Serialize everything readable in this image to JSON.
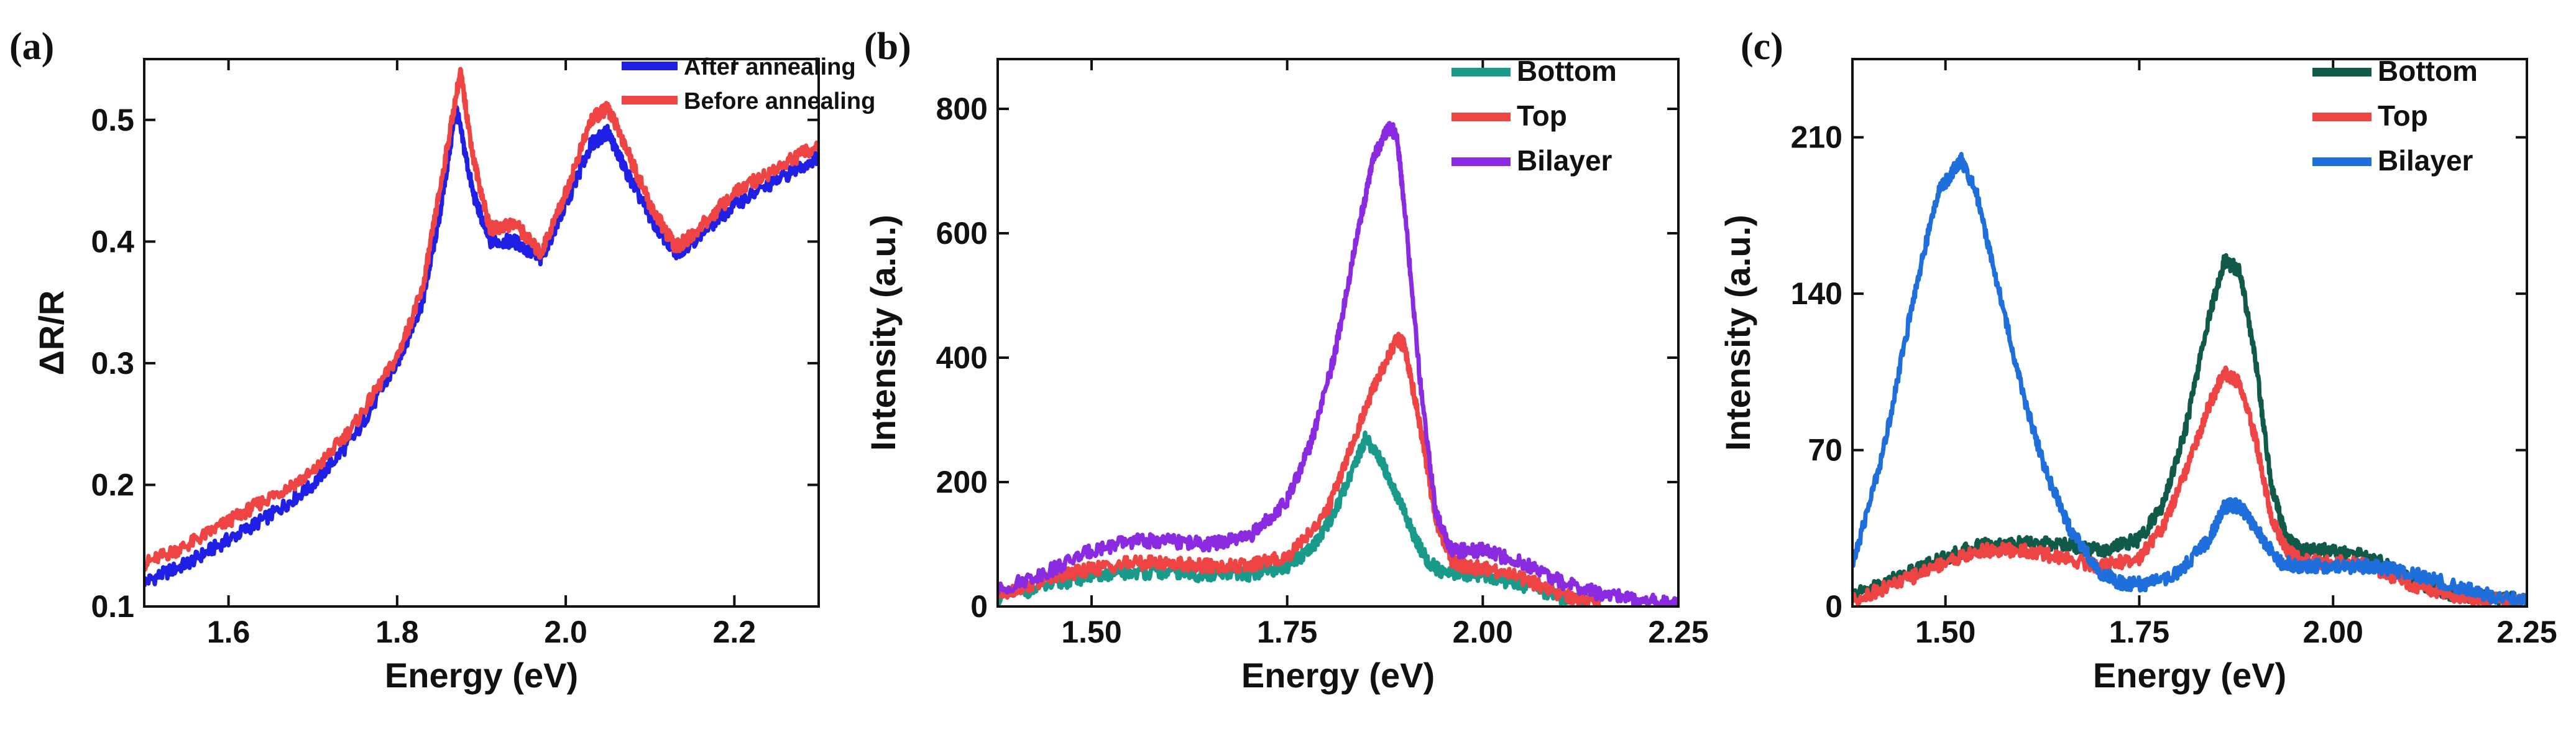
{
  "chart_data": [
    {
      "panel_label": "(a)",
      "type": "line",
      "xlabel": "Energy (eV)",
      "ylabel": "ΔR/R",
      "xlim": [
        1.5,
        2.3
      ],
      "ylim": [
        0.1,
        0.55
      ],
      "xticks": [
        1.6,
        1.8,
        2.0,
        2.2
      ],
      "xtick_labels": [
        "1.6",
        "1.8",
        "2.0",
        "2.2"
      ],
      "yticks": [
        0.1,
        0.2,
        0.3,
        0.4,
        0.5
      ],
      "ytick_labels": [
        "0.1",
        "0.2",
        "0.3",
        "0.4",
        "0.5"
      ],
      "legend_position": "top-right",
      "series": [
        {
          "name": "After annealing",
          "color": "#1f1fe6",
          "x": [
            1.5,
            1.55,
            1.6,
            1.65,
            1.7,
            1.75,
            1.8,
            1.83,
            1.85,
            1.87,
            1.89,
            1.91,
            1.94,
            1.97,
            2.0,
            2.03,
            2.05,
            2.07,
            2.1,
            2.13,
            2.15,
            2.2,
            2.25,
            2.3
          ],
          "values": [
            0.12,
            0.135,
            0.155,
            0.175,
            0.2,
            0.24,
            0.3,
            0.35,
            0.42,
            0.51,
            0.44,
            0.4,
            0.4,
            0.385,
            0.43,
            0.48,
            0.49,
            0.46,
            0.42,
            0.39,
            0.4,
            0.43,
            0.45,
            0.47
          ]
        },
        {
          "name": "Before annealing",
          "color": "#ee4444",
          "x": [
            1.5,
            1.55,
            1.6,
            1.65,
            1.7,
            1.75,
            1.8,
            1.83,
            1.85,
            1.875,
            1.89,
            1.91,
            1.94,
            1.97,
            2.0,
            2.03,
            2.05,
            2.07,
            2.1,
            2.13,
            2.15,
            2.2,
            2.25,
            2.3
          ],
          "values": [
            0.135,
            0.15,
            0.17,
            0.19,
            0.21,
            0.25,
            0.305,
            0.36,
            0.44,
            0.54,
            0.47,
            0.41,
            0.415,
            0.39,
            0.44,
            0.5,
            0.51,
            0.48,
            0.43,
            0.395,
            0.405,
            0.44,
            0.46,
            0.48
          ]
        }
      ]
    },
    {
      "panel_label": "(b)",
      "type": "line",
      "xlabel": "Energy (eV)",
      "ylabel": "Intensity (a.u.)",
      "xlim": [
        1.38,
        2.25
      ],
      "ylim": [
        0,
        880
      ],
      "xticks": [
        1.5,
        1.75,
        2.0,
        2.25
      ],
      "xtick_labels": [
        "1.50",
        "1.75",
        "2.00",
        "2.25"
      ],
      "yticks": [
        0,
        200,
        400,
        600,
        800
      ],
      "ytick_labels": [
        "0",
        "200",
        "400",
        "600",
        "800"
      ],
      "legend_position": "top-right",
      "series": [
        {
          "name": "Bottom",
          "color": "#1a9a8a",
          "x": [
            1.38,
            1.45,
            1.5,
            1.55,
            1.6,
            1.65,
            1.7,
            1.75,
            1.78,
            1.81,
            1.84,
            1.85,
            1.87,
            1.89,
            1.91,
            1.93,
            1.95,
            2.0,
            2.05,
            2.1,
            2.15
          ],
          "values": [
            15,
            35,
            50,
            55,
            55,
            50,
            52,
            65,
            90,
            150,
            240,
            270,
            235,
            180,
            120,
            70,
            55,
            50,
            35,
            15,
            5
          ]
        },
        {
          "name": "Top",
          "color": "#ee4444",
          "x": [
            1.38,
            1.45,
            1.5,
            1.55,
            1.6,
            1.65,
            1.7,
            1.75,
            1.8,
            1.83,
            1.86,
            1.89,
            1.9,
            1.92,
            1.94,
            1.96,
            1.98,
            2.0,
            2.05,
            2.1,
            2.15
          ],
          "values": [
            20,
            45,
            60,
            70,
            70,
            65,
            65,
            80,
            150,
            250,
            350,
            430,
            420,
            290,
            140,
            75,
            62,
            62,
            45,
            20,
            5
          ]
        },
        {
          "name": "Bilayer",
          "color": "#8a2be2",
          "x": [
            1.38,
            1.45,
            1.5,
            1.55,
            1.6,
            1.65,
            1.7,
            1.75,
            1.78,
            1.81,
            1.84,
            1.86,
            1.88,
            1.89,
            1.9,
            1.92,
            1.94,
            1.96,
            2.0,
            2.05,
            2.1,
            2.15,
            2.2,
            2.25
          ],
          "values": [
            25,
            60,
            90,
            105,
            105,
            100,
            110,
            170,
            260,
            400,
            600,
            720,
            770,
            760,
            640,
            360,
            150,
            90,
            90,
            70,
            40,
            20,
            10,
            5
          ]
        }
      ]
    },
    {
      "panel_label": "(c)",
      "type": "line",
      "xlabel": "Energy (eV)",
      "ylabel": "Intensity (a.u.)",
      "xlim": [
        1.38,
        2.25
      ],
      "ylim": [
        0,
        245
      ],
      "xticks": [
        1.5,
        1.75,
        2.0,
        2.25
      ],
      "xtick_labels": [
        "1.50",
        "1.75",
        "2.00",
        "2.25"
      ],
      "yticks": [
        0,
        70,
        140,
        210
      ],
      "ytick_labels": [
        "0",
        "70",
        "140",
        "210"
      ],
      "legend_position": "top-right",
      "series": [
        {
          "name": "Bottom",
          "color": "#0f5a48",
          "x": [
            1.38,
            1.45,
            1.5,
            1.55,
            1.6,
            1.65,
            1.7,
            1.75,
            1.78,
            1.81,
            1.84,
            1.86,
            1.88,
            1.9,
            1.92,
            1.94,
            1.96,
            2.0,
            2.05,
            2.1,
            2.15,
            2.2,
            2.25
          ],
          "values": [
            5,
            15,
            22,
            28,
            28,
            28,
            25,
            30,
            45,
            80,
            130,
            155,
            150,
            110,
            55,
            30,
            25,
            25,
            22,
            12,
            6,
            4,
            3
          ]
        },
        {
          "name": "Top",
          "color": "#ee4444",
          "x": [
            1.38,
            1.45,
            1.5,
            1.55,
            1.6,
            1.65,
            1.7,
            1.75,
            1.78,
            1.81,
            1.84,
            1.86,
            1.88,
            1.9,
            1.92,
            1.94,
            1.96,
            2.0,
            2.05,
            2.1,
            2.15,
            2.2,
            2.25
          ],
          "values": [
            3,
            12,
            20,
            25,
            25,
            22,
            18,
            22,
            35,
            60,
            90,
            105,
            100,
            75,
            40,
            25,
            20,
            20,
            18,
            10,
            5,
            3,
            2
          ]
        },
        {
          "name": "Bilayer",
          "color": "#1e6fdc",
          "x": [
            1.38,
            1.42,
            1.46,
            1.49,
            1.51,
            1.52,
            1.54,
            1.57,
            1.6,
            1.63,
            1.66,
            1.7,
            1.73,
            1.76,
            1.8,
            1.84,
            1.86,
            1.88,
            1.9,
            1.93,
            1.96,
            2.0,
            2.05,
            2.1,
            2.15,
            2.2,
            2.25
          ],
          "values": [
            18,
            70,
            140,
            185,
            195,
            200,
            185,
            140,
            95,
            60,
            35,
            15,
            10,
            10,
            15,
            30,
            45,
            45,
            35,
            20,
            18,
            18,
            18,
            15,
            10,
            5,
            3
          ]
        }
      ]
    }
  ]
}
